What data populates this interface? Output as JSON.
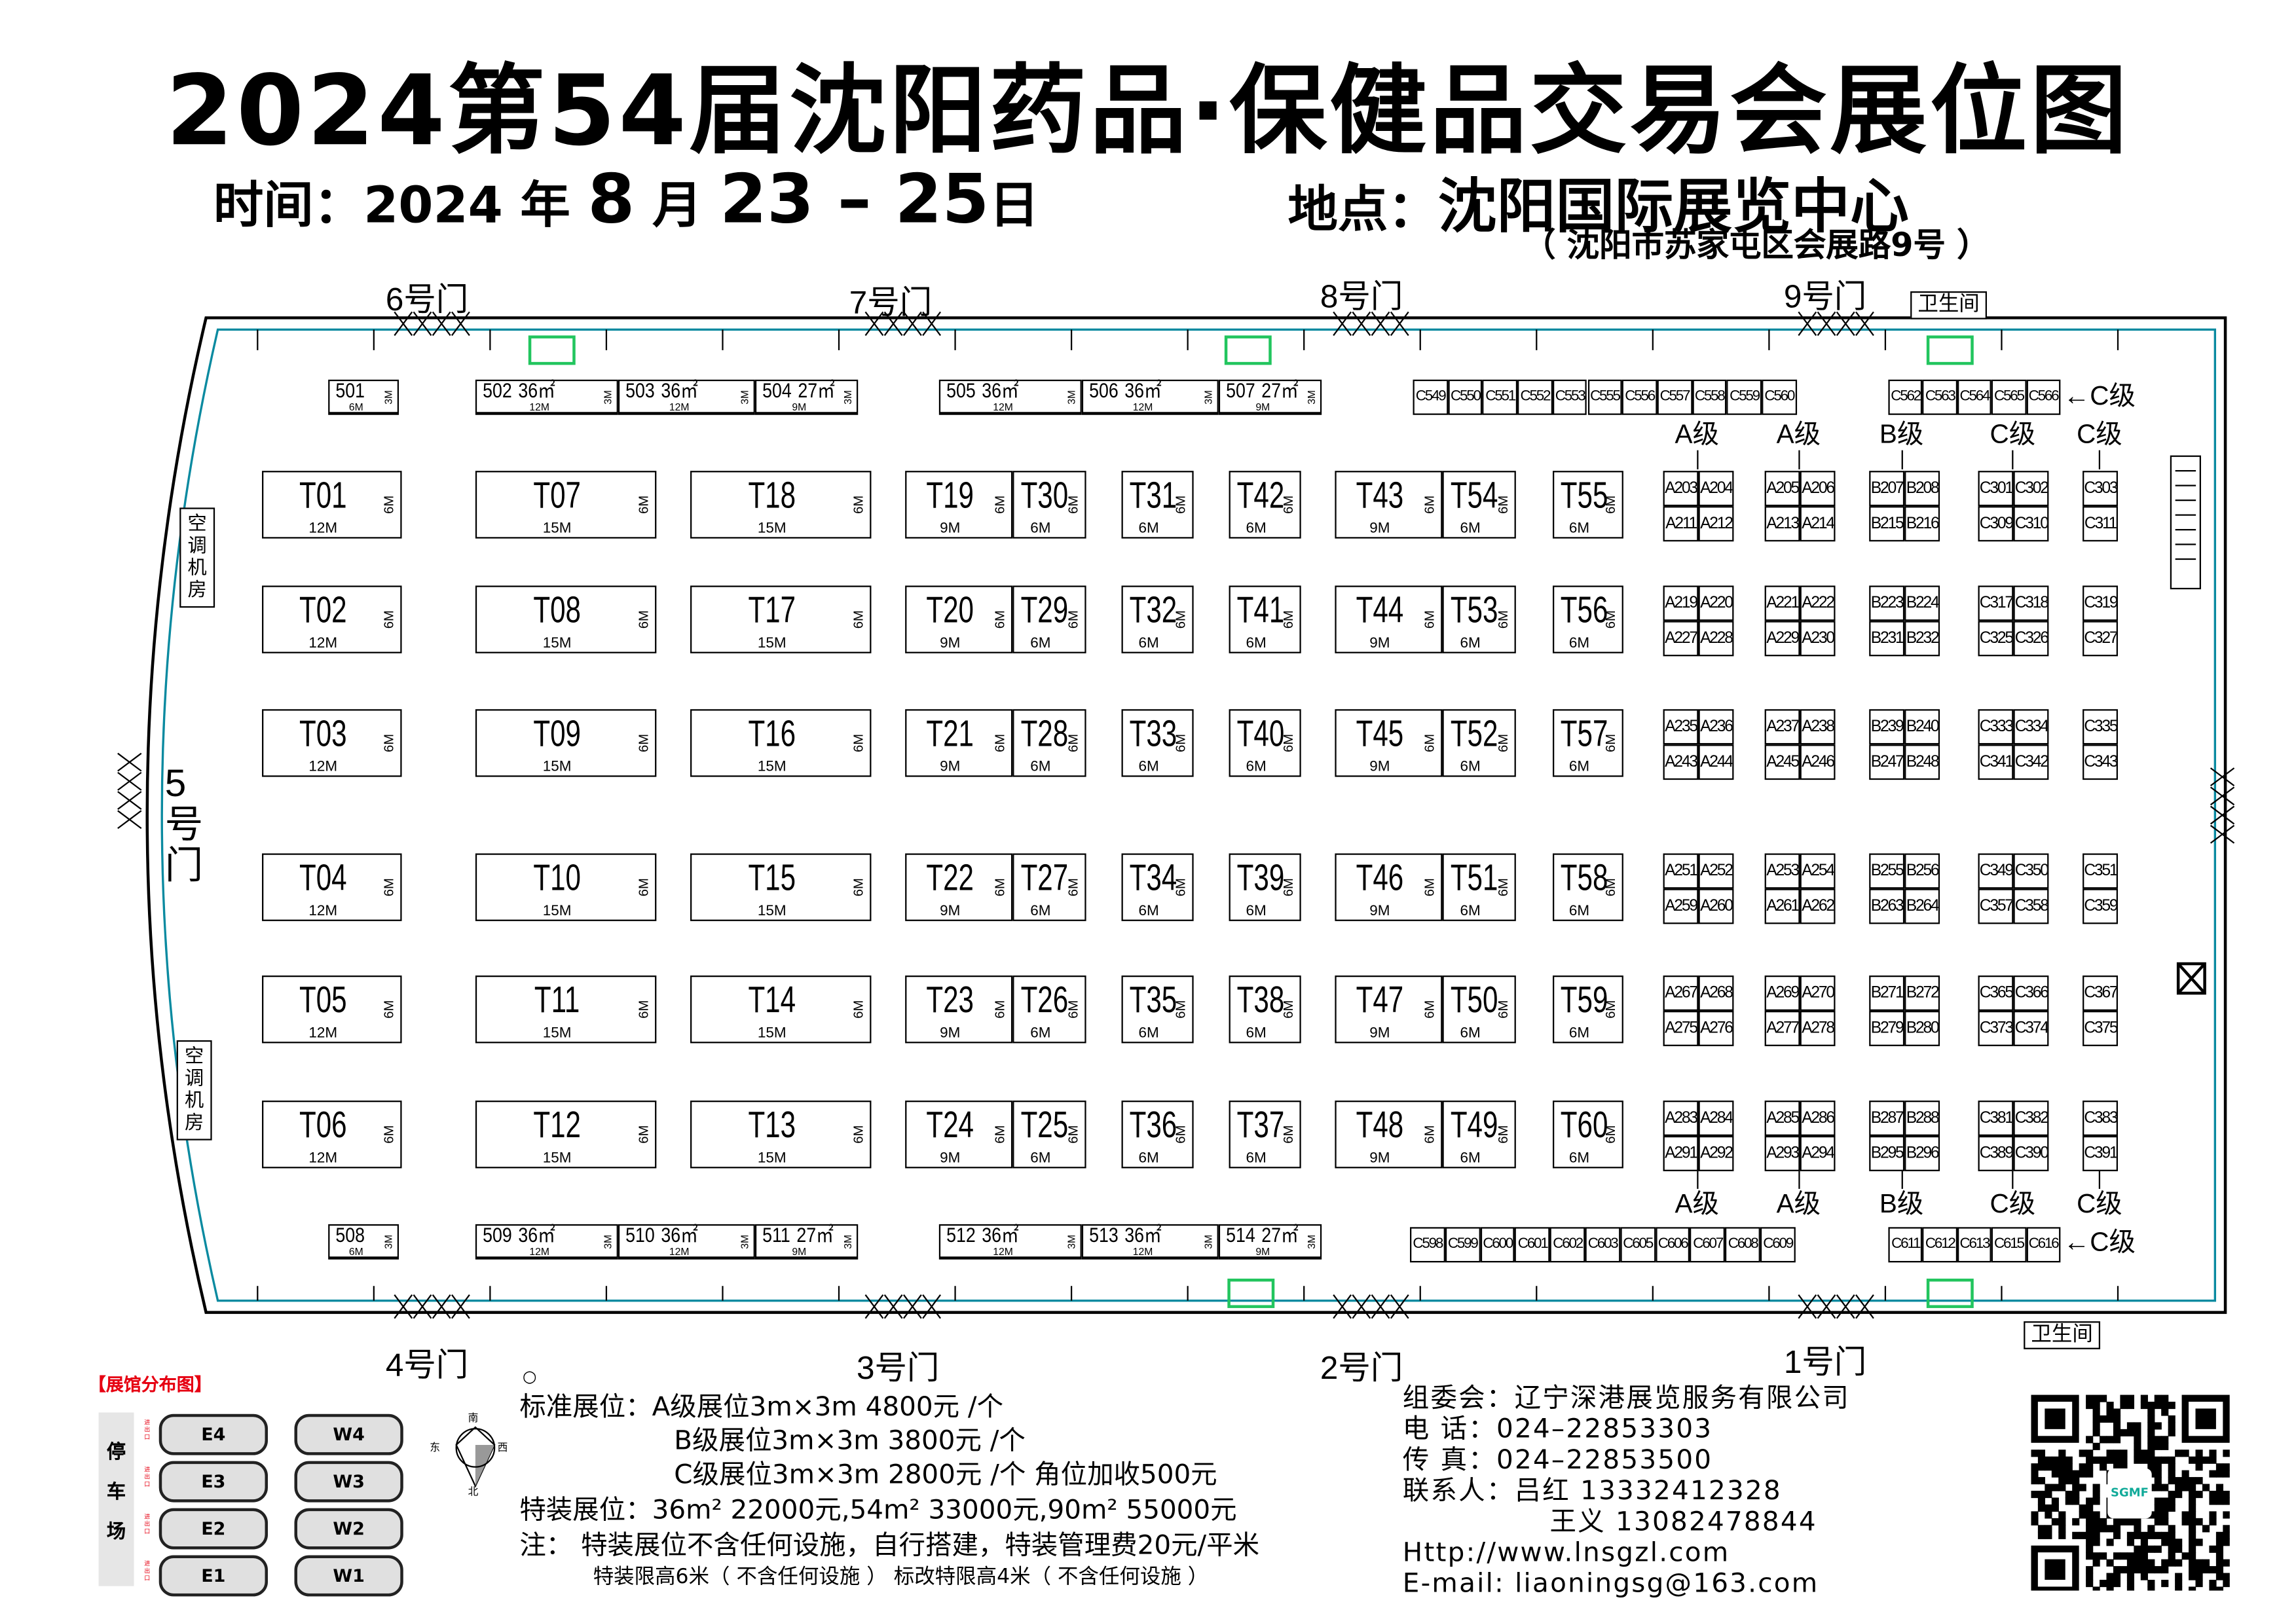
{
  "title": "2024第54届沈阳药品·保健品交易会展位图",
  "time_label": "时间：",
  "time_value_pre": "2024 年 ",
  "time_month": "8",
  "time_month_unit": " 月 ",
  "time_days": "23 – 25",
  "time_day_unit": "日",
  "place_label": "地点：",
  "place_value": "沈阳国际展览中心",
  "address": "（ 沈阳市苏家屯区会展路9号 ）",
  "doors": {
    "d6": "6号门",
    "d7": "7号门",
    "d8": "8号门",
    "d9": "9号门",
    "d4": "4号门",
    "d3": "3号门",
    "d2": "2号门",
    "d1": "1号门",
    "d5": "5\n号\n门"
  },
  "restroom": "卫生间",
  "ac_room": "空调机房",
  "colors": {
    "accent_red": "#e60012",
    "green_marker": "#22c55e",
    "wall": "#0a8aa0"
  },
  "t_rows": [
    [
      "T01",
      "T07",
      "T18",
      "T19",
      "T30",
      "T31",
      "T42",
      "T43",
      "T54",
      "T55"
    ],
    [
      "T02",
      "T08",
      "T17",
      "T20",
      "T29",
      "T32",
      "T41",
      "T44",
      "T53",
      "T56"
    ],
    [
      "T03",
      "T09",
      "T16",
      "T21",
      "T28",
      "T33",
      "T40",
      "T45",
      "T52",
      "T57"
    ],
    [
      "T04",
      "T10",
      "T15",
      "T22",
      "T27",
      "T34",
      "T39",
      "T46",
      "T51",
      "T58"
    ],
    [
      "T05",
      "T11",
      "T14",
      "T23",
      "T26",
      "T35",
      "T38",
      "T47",
      "T50",
      "T59"
    ],
    [
      "T06",
      "T12",
      "T13",
      "T24",
      "T25",
      "T36",
      "T37",
      "T48",
      "T49",
      "T60"
    ]
  ],
  "t_widths": [
    "12M",
    "15M",
    "15M",
    "9M",
    "6M",
    "6M",
    "6M",
    "9M",
    "6M",
    "6M"
  ],
  "t_depth": "6M",
  "abc_rows": [
    [
      [
        "A203",
        "A204",
        "A211",
        "A212"
      ],
      [
        "A205",
        "A206",
        "A213",
        "A214"
      ],
      [
        "B207",
        "B208",
        "B215",
        "B216"
      ],
      [
        "C301",
        "C302",
        "C309",
        "C310"
      ],
      [
        "C303",
        "C311"
      ]
    ],
    [
      [
        "A219",
        "A220",
        "A227",
        "A228"
      ],
      [
        "A221",
        "A222",
        "A229",
        "A230"
      ],
      [
        "B223",
        "B224",
        "B231",
        "B232"
      ],
      [
        "C317",
        "C318",
        "C325",
        "C326"
      ],
      [
        "C319",
        "C327"
      ]
    ],
    [
      [
        "A235",
        "A236",
        "A243",
        "A244"
      ],
      [
        "A237",
        "A238",
        "A245",
        "A246"
      ],
      [
        "B239",
        "B240",
        "B247",
        "B248"
      ],
      [
        "C333",
        "C334",
        "C341",
        "C342"
      ],
      [
        "C335",
        "C343"
      ]
    ],
    [
      [
        "A251",
        "A252",
        "A259",
        "A260"
      ],
      [
        "A253",
        "A254",
        "A261",
        "A262"
      ],
      [
        "B255",
        "B256",
        "B263",
        "B264"
      ],
      [
        "C349",
        "C350",
        "C357",
        "C358"
      ],
      [
        "C351",
        "C359"
      ]
    ],
    [
      [
        "A267",
        "A268",
        "A275",
        "A276"
      ],
      [
        "A269",
        "A270",
        "A277",
        "A278"
      ],
      [
        "B271",
        "B272",
        "B279",
        "B280"
      ],
      [
        "C365",
        "C366",
        "C373",
        "C374"
      ],
      [
        "C367",
        "C375"
      ]
    ],
    [
      [
        "A283",
        "A284",
        "A291",
        "A292"
      ],
      [
        "A285",
        "A286",
        "A293",
        "A294"
      ],
      [
        "B287",
        "B288",
        "B295",
        "B296"
      ],
      [
        "C381",
        "C382",
        "C389",
        "C390"
      ],
      [
        "C383",
        "C391"
      ]
    ]
  ],
  "grades": [
    "A级",
    "A级",
    "B级",
    "C级",
    "C级"
  ],
  "side_grade": "←C级",
  "top_500": [
    {
      "n": "501",
      "area": "",
      "w": "6M",
      "d": "3M"
    },
    {
      "n": "502",
      "area": "36㎡",
      "w": "12M",
      "d": "3M"
    },
    {
      "n": "503",
      "area": "36㎡",
      "w": "12M",
      "d": "3M"
    },
    {
      "n": "504",
      "area": "27㎡",
      "w": "9M",
      "d": "3M"
    },
    {
      "n": "505",
      "area": "36㎡",
      "w": "12M",
      "d": "3M"
    },
    {
      "n": "506",
      "area": "36㎡",
      "w": "12M",
      "d": "3M"
    },
    {
      "n": "507",
      "area": "27㎡",
      "w": "9M",
      "d": "3M"
    }
  ],
  "bottom_500": [
    {
      "n": "508",
      "area": "",
      "w": "6M",
      "d": "3M"
    },
    {
      "n": "509",
      "area": "36㎡",
      "w": "12M",
      "d": "3M"
    },
    {
      "n": "510",
      "area": "36㎡",
      "w": "12M",
      "d": "3M"
    },
    {
      "n": "511",
      "area": "27㎡",
      "w": "9M",
      "d": "3M"
    },
    {
      "n": "512",
      "area": "36㎡",
      "w": "12M",
      "d": "3M"
    },
    {
      "n": "513",
      "area": "36㎡",
      "w": "12M",
      "d": "3M"
    },
    {
      "n": "514",
      "area": "27㎡",
      "w": "9M",
      "d": "3M"
    }
  ],
  "c_top_left": [
    "C549",
    "C550",
    "C551",
    "C552",
    "C553",
    "C555",
    "C556",
    "C557",
    "C558",
    "C559",
    "C560"
  ],
  "c_top_right": [
    "C562",
    "C563",
    "C564",
    "C565",
    "C566"
  ],
  "c_bottom_left": [
    "C598",
    "C599",
    "C600",
    "C601",
    "C602",
    "C603",
    "C605",
    "C606",
    "C607",
    "C608",
    "C609"
  ],
  "c_bottom_right": [
    "C611",
    "C612",
    "C613",
    "C615",
    "C616"
  ],
  "minimap": {
    "title": "【展馆分布图】",
    "parking": "停\n车\n场",
    "halls_e": [
      "E4",
      "E3",
      "E2",
      "E1"
    ],
    "halls_w": [
      "W4",
      "W3",
      "W2",
      "W1"
    ],
    "exit": "进出口"
  },
  "compass": {
    "n": "南",
    "e": "东",
    "w": "西",
    "s": "北"
  },
  "pricing": {
    "dot": "○",
    "standard_label": "标准展位：",
    "a": "A级展位3m×3m  4800元 /个",
    "b": "B级展位3m×3m  3800元 /个",
    "c": "C级展位3m×3m  2800元 /个 角位加收500元",
    "special": "特装展位：36m² 22000元,54m² 33000元,90m² 55000元",
    "note": "注：  特装展位不含任何设施，自行搭建，特装管理费20元/平米",
    "note2": "特装限高6米（ 不含任何设施 ）   标改特限高4米（ 不含任何设施 ）"
  },
  "contact": {
    "org": "组委会：辽宁深港展览服务有限公司",
    "tel": "电    话：024–22853303",
    "fax": "传    真：024–22853500",
    "person1": "联系人：吕红 13332412328",
    "person2": "王义 13082478844",
    "web": "Http://www.lnsgzl.com",
    "email": "E-mail: liaoningsg@163.com"
  },
  "qr_logo": "SGMF"
}
